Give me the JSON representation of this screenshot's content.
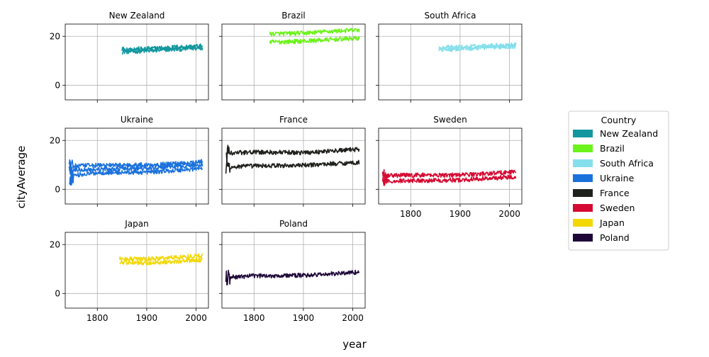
{
  "chart_data": {
    "type": "line",
    "xlabel": "year",
    "ylabel": "cityAverage",
    "xlim": [
      1735,
      2025
    ],
    "ylim": [
      -6,
      25
    ],
    "xticks": [
      1800,
      1900,
      2000
    ],
    "yticks": [
      0,
      20
    ],
    "grid": true,
    "legend": {
      "title": "Country",
      "position": "right"
    },
    "panels": [
      {
        "name": "New Zealand",
        "color": "#12979f",
        "start": 1850,
        "end": 2013,
        "series": [
          {
            "values": [
              [
                1850,
                13.6
              ],
              [
                1900,
                14.0
              ],
              [
                1950,
                14.6
              ],
              [
                2013,
                15.2
              ]
            ]
          },
          {
            "values": [
              [
                1855,
                14.8
              ],
              [
                1900,
                14.9
              ],
              [
                1950,
                15.5
              ],
              [
                2013,
                16.0
              ]
            ]
          }
        ]
      },
      {
        "name": "Brazil",
        "color": "#6cf31a",
        "start": 1832,
        "end": 2013,
        "series": [
          {
            "values": [
              [
                1832,
                17.6
              ],
              [
                1900,
                18.0
              ],
              [
                1950,
                18.6
              ],
              [
                2013,
                19.2
              ]
            ]
          },
          {
            "values": [
              [
                1832,
                21.0
              ],
              [
                1900,
                21.3
              ],
              [
                1950,
                22.0
              ],
              [
                2013,
                22.6
              ]
            ]
          }
        ]
      },
      {
        "name": "South Africa",
        "color": "#85dfeb",
        "start": 1857,
        "end": 2013,
        "series": [
          {
            "values": [
              [
                1857,
                14.6
              ],
              [
                1900,
                14.8
              ],
              [
                1950,
                15.4
              ],
              [
                2013,
                15.9
              ]
            ]
          },
          {
            "values": [
              [
                1857,
                15.4
              ],
              [
                1900,
                15.5
              ],
              [
                1950,
                16.1
              ],
              [
                2013,
                16.6
              ]
            ]
          }
        ]
      },
      {
        "name": "Ukraine",
        "color": "#1a71dc",
        "start": 1743,
        "end": 2013,
        "series": [
          {
            "values": [
              [
                1743,
                5.5
              ],
              [
                1800,
                6.8
              ],
              [
                1900,
                7.0
              ],
              [
                1950,
                7.6
              ],
              [
                2013,
                8.6
              ]
            ]
          },
          {
            "values": [
              [
                1743,
                8.0
              ],
              [
                1800,
                8.2
              ],
              [
                1900,
                8.6
              ],
              [
                1950,
                9.2
              ],
              [
                2013,
                10.0
              ]
            ]
          },
          {
            "values": [
              [
                1743,
                9.5
              ],
              [
                1800,
                9.8
              ],
              [
                1900,
                10.0
              ],
              [
                1950,
                10.4
              ],
              [
                2013,
                11.4
              ]
            ]
          }
        ]
      },
      {
        "name": "France",
        "color": "#1f211c",
        "start": 1743,
        "end": 2013,
        "series": [
          {
            "values": [
              [
                1743,
                9.0
              ],
              [
                1800,
                9.6
              ],
              [
                1900,
                9.8
              ],
              [
                1950,
                10.4
              ],
              [
                2013,
                11.0
              ]
            ]
          },
          {
            "values": [
              [
                1743,
                14.8
              ],
              [
                1800,
                15.2
              ],
              [
                1900,
                15.0
              ],
              [
                1950,
                15.6
              ],
              [
                2013,
                16.4
              ]
            ]
          }
        ]
      },
      {
        "name": "Sweden",
        "color": "#d50a32",
        "start": 1743,
        "end": 2013,
        "series": [
          {
            "values": [
              [
                1743,
                3.2
              ],
              [
                1800,
                3.6
              ],
              [
                1900,
                3.8
              ],
              [
                1950,
                4.4
              ],
              [
                2013,
                5.2
              ]
            ]
          },
          {
            "values": [
              [
                1743,
                5.6
              ],
              [
                1800,
                5.8
              ],
              [
                1900,
                5.9
              ],
              [
                1950,
                6.4
              ],
              [
                2013,
                7.2
              ]
            ]
          }
        ]
      },
      {
        "name": "Japan",
        "color": "#f3d806",
        "start": 1845,
        "end": 2013,
        "series": [
          {
            "values": [
              [
                1845,
                12.8
              ],
              [
                1900,
                12.4
              ],
              [
                1950,
                13.0
              ],
              [
                2013,
                13.8
              ]
            ]
          },
          {
            "values": [
              [
                1845,
                14.2
              ],
              [
                1900,
                14.0
              ],
              [
                1950,
                14.7
              ],
              [
                2013,
                15.5
              ]
            ]
          }
        ]
      },
      {
        "name": "Poland",
        "color": "#1e0738",
        "start": 1743,
        "end": 2013,
        "series": [
          {
            "values": [
              [
                1743,
                6.5
              ],
              [
                1800,
                7.2
              ],
              [
                1900,
                7.4
              ],
              [
                1950,
                7.9
              ],
              [
                2013,
                8.8
              ]
            ]
          }
        ]
      }
    ]
  }
}
